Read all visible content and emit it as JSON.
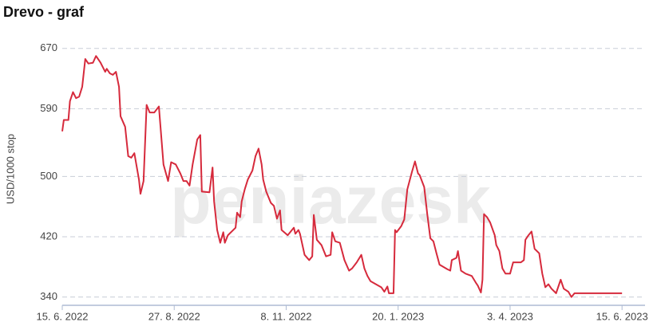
{
  "chart_data": {
    "type": "line",
    "title": "Drevo - graf",
    "y_label": "USD/1000 stop",
    "watermark": "peniazesk",
    "x": [
      "2022-06-15",
      "2022-06-16",
      "2022-06-19",
      "2022-06-20",
      "2022-06-22",
      "2022-06-24",
      "2022-06-26",
      "2022-06-28",
      "2022-06-30",
      "2022-07-02",
      "2022-07-05",
      "2022-07-07",
      "2022-07-10",
      "2022-07-13",
      "2022-07-14",
      "2022-07-16",
      "2022-07-18",
      "2022-07-20",
      "2022-07-22",
      "2022-07-23",
      "2022-07-26",
      "2022-07-28",
      "2022-07-30",
      "2022-08-01",
      "2022-08-04",
      "2022-08-05",
      "2022-08-07",
      "2022-08-09",
      "2022-08-11",
      "2022-08-14",
      "2022-08-17",
      "2022-08-20",
      "2022-08-23",
      "2022-08-25",
      "2022-08-28",
      "2022-08-31",
      "2022-09-02",
      "2022-09-04",
      "2022-09-06",
      "2022-09-08",
      "2022-09-11",
      "2022-09-13",
      "2022-09-14",
      "2022-09-19",
      "2022-09-21",
      "2022-09-22",
      "2022-09-24",
      "2022-09-26",
      "2022-09-28",
      "2022-09-29",
      "2022-10-01",
      "2022-10-06",
      "2022-10-07",
      "2022-10-09",
      "2022-10-10",
      "2022-10-12",
      "2022-10-14",
      "2022-10-17",
      "2022-10-19",
      "2022-10-21",
      "2022-10-23",
      "2022-10-24",
      "2022-10-26",
      "2022-10-29",
      "2022-10-31",
      "2022-11-02",
      "2022-11-04",
      "2022-11-05",
      "2022-11-09",
      "2022-11-13",
      "2022-11-14",
      "2022-11-16",
      "2022-11-17",
      "2022-11-20",
      "2022-11-23",
      "2022-11-25",
      "2022-11-26",
      "2022-11-28",
      "2022-12-01",
      "2022-12-04",
      "2022-12-07",
      "2022-12-08",
      "2022-12-10",
      "2022-12-13",
      "2022-12-16",
      "2022-12-19",
      "2022-12-21",
      "2022-12-24",
      "2022-12-27",
      "2022-12-29",
      "2022-12-31",
      "2023-01-02",
      "2023-01-09",
      "2023-01-11",
      "2023-01-13",
      "2023-01-14",
      "2023-01-17",
      "2023-01-18",
      "2023-01-19",
      "2023-01-22",
      "2023-01-24",
      "2023-01-26",
      "2023-01-29",
      "2023-01-31",
      "2023-02-02",
      "2023-02-03",
      "2023-02-06",
      "2023-02-08",
      "2023-02-10",
      "2023-02-12",
      "2023-02-14",
      "2023-02-16",
      "2023-02-21",
      "2023-02-23",
      "2023-02-24",
      "2023-02-27",
      "2023-02-28",
      "2023-03-02",
      "2023-03-05",
      "2023-03-09",
      "2023-03-12",
      "2023-03-13",
      "2023-03-15",
      "2023-03-16",
      "2023-03-17",
      "2023-03-19",
      "2023-03-21",
      "2023-03-24",
      "2023-03-25",
      "2023-03-27",
      "2023-03-29",
      "2023-03-31",
      "2023-04-03",
      "2023-04-05",
      "2023-04-10",
      "2023-04-12",
      "2023-04-13",
      "2023-04-15",
      "2023-04-17",
      "2023-04-19",
      "2023-04-22",
      "2023-04-24",
      "2023-04-26",
      "2023-04-28",
      "2023-04-30",
      "2023-05-03",
      "2023-05-06",
      "2023-05-08",
      "2023-05-11",
      "2023-05-13",
      "2023-05-15",
      "2023-06-15"
    ],
    "series": [
      {
        "color": "#d62a3c",
        "values": [
          560,
          575,
          575,
          600,
          612,
          604,
          606,
          619,
          656,
          650,
          651,
          660,
          651,
          639,
          643,
          637,
          635,
          639,
          619,
          580,
          566,
          527,
          525,
          531,
          496,
          477,
          494,
          595,
          585,
          585,
          593,
          516,
          494,
          519,
          516,
          504,
          494,
          494,
          488,
          516,
          549,
          555,
          480,
          479,
          512,
          467,
          429,
          412,
          426,
          412,
          422,
          432,
          452,
          446,
          467,
          483,
          496,
          508,
          527,
          537,
          516,
          496,
          480,
          465,
          461,
          444,
          455,
          429,
          422,
          432,
          424,
          429,
          424,
          396,
          389,
          394,
          449,
          416,
          409,
          394,
          396,
          426,
          414,
          412,
          389,
          375,
          378,
          386,
          396,
          378,
          368,
          361,
          353,
          347,
          354,
          345,
          345,
          429,
          426,
          434,
          443,
          483,
          506,
          520,
          504,
          502,
          486,
          450,
          418,
          414,
          398,
          383,
          377,
          375,
          389,
          392,
          401,
          375,
          371,
          368,
          358,
          355,
          346,
          363,
          450,
          446,
          439,
          422,
          409,
          401,
          378,
          371,
          371,
          386,
          386,
          389,
          416,
          422,
          427,
          404,
          398,
          371,
          353,
          357,
          351,
          345,
          363,
          351,
          347,
          340,
          345,
          345
        ]
      }
    ],
    "xlim": [
      "2022-06-15",
      "2023-06-30"
    ],
    "xticks": [
      {
        "value": "2022-06-15",
        "label": "15. 6. 2022"
      },
      {
        "value": "2022-08-27",
        "label": "27. 8. 2022"
      },
      {
        "value": "2022-11-08",
        "label": "8. 11. 2022"
      },
      {
        "value": "2023-01-20",
        "label": "20. 1. 2023"
      },
      {
        "value": "2023-04-03",
        "label": "3. 4. 2023"
      },
      {
        "value": "2023-06-15",
        "label": "15. 6. 2023"
      }
    ],
    "ylim": [
      329,
      692
    ],
    "yticks": [
      340,
      420,
      500,
      590,
      670
    ],
    "grid": true
  }
}
